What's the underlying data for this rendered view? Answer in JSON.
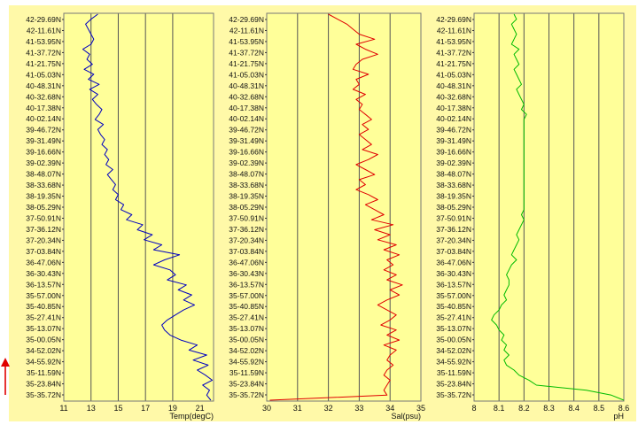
{
  "latitude_labels": [
    "42-29.69N",
    "42-11.61N",
    "41-53.95N",
    "41-37.72N",
    "41-21.75N",
    "41-05.03N",
    "40-48.31N",
    "40-32.68N",
    "40-17.38N",
    "40-02.14N",
    "39-46.72N",
    "39-31.49N",
    "39-16.66N",
    "39-02.39N",
    "38-48.07N",
    "38-33.68N",
    "38-19.35N",
    "38-05.29N",
    "37-50.91N",
    "37-36.12N",
    "37-20.34N",
    "37-03.84N",
    "36-47.06N",
    "36-30.43N",
    "36-13.57N",
    "35-57.00N",
    "35-40.85N",
    "35-27.41N",
    "35-13.07N",
    "35-00.05N",
    "34-52.02N",
    "34-55.92N",
    "35-11.59N",
    "35-23.84N",
    "35-35.72N"
  ],
  "colors": {
    "panel_bg": "#ffff99",
    "frame_bg": "#fff9a8",
    "temp": "#0000c0",
    "sal": "#e00000",
    "ph": "#00bb00",
    "arrow": "#e00000",
    "grid": "#555555"
  },
  "arrow_icon": "up-arrow-icon",
  "chart_data": [
    {
      "type": "line",
      "xlabel": "Temp(degC)",
      "xlim": [
        11,
        22
      ],
      "xticks": [
        11,
        13,
        15,
        17,
        19,
        21
      ],
      "y": "latitude_labels",
      "series": [
        {
          "values": [
            13.5,
            13.0,
            12.6,
            12.8,
            13.0,
            13.2,
            13.0,
            12.4,
            12.9,
            12.7,
            13.1,
            12.5,
            13.2,
            12.8,
            13.6,
            12.9,
            13.5,
            13.1,
            13.4,
            13.8,
            13.6,
            13.3,
            13.9,
            13.5,
            13.7,
            14.0,
            13.8,
            14.2,
            14.0,
            14.3,
            14.1,
            14.6,
            14.2,
            14.5,
            14.8,
            14.6,
            15.0,
            14.8,
            15.4,
            15.2,
            16.0,
            15.6,
            16.8,
            16.4,
            17.5,
            16.9,
            18.2,
            17.6,
            19.5,
            18.4,
            17.6,
            18.8,
            19.2,
            18.6,
            20.0,
            19.4,
            20.4,
            19.8,
            20.6,
            19.8,
            19.2,
            18.6,
            18.2,
            18.4,
            18.8,
            19.6,
            20.8,
            20.2,
            21.5,
            20.5,
            21.6,
            20.8,
            21.4,
            21.9,
            21.2,
            21.7,
            21.5,
            21.8
          ]
        }
      ]
    },
    {
      "type": "line",
      "xlabel": "Sal(psu)",
      "xlim": [
        30,
        35
      ],
      "xticks": [
        30,
        31,
        32,
        33,
        34,
        35
      ],
      "y": "latitude_labels",
      "series": [
        {
          "values": [
            32.0,
            32.3,
            32.6,
            32.8,
            33.0,
            33.5,
            32.9,
            33.2,
            33.6,
            33.1,
            32.9,
            32.8,
            33.3,
            32.9,
            33.0,
            32.8,
            33.2,
            32.9,
            33.1,
            33.0,
            33.2,
            33.4,
            33.1,
            33.3,
            33.0,
            33.2,
            33.4,
            33.1,
            33.6,
            33.3,
            32.9,
            33.2,
            33.5,
            33.0,
            33.2,
            32.9,
            33.3,
            33.6,
            33.2,
            33.5,
            33.8,
            33.4,
            34.1,
            33.5,
            34.0,
            33.6,
            34.2,
            33.8,
            34.3,
            33.9,
            34.1,
            33.8,
            34.2,
            33.9,
            34.4,
            34.0,
            34.3,
            33.9,
            33.6,
            33.9,
            34.2,
            34.0,
            33.7,
            34.2,
            33.9,
            34.3,
            33.8,
            34.2,
            34.0,
            33.9,
            34.1,
            33.9,
            33.8,
            34.0,
            33.9,
            33.8,
            33.9,
            30.1
          ]
        }
      ]
    },
    {
      "type": "line",
      "xlabel": "pH",
      "xlim": [
        8.0,
        8.6
      ],
      "xticks": [
        8,
        8.1,
        8.2,
        8.3,
        8.4,
        8.5,
        8.6
      ],
      "y": "latitude_labels",
      "series": [
        {
          "values": [
            8.16,
            8.17,
            8.15,
            8.16,
            8.17,
            8.16,
            8.15,
            8.18,
            8.16,
            8.17,
            8.18,
            8.16,
            8.17,
            8.18,
            8.19,
            8.17,
            8.18,
            8.19,
            8.2,
            8.19,
            8.21,
            8.2,
            8.2,
            8.2,
            8.2,
            8.2,
            8.2,
            8.2,
            8.2,
            8.2,
            8.2,
            8.2,
            8.2,
            8.2,
            8.2,
            8.2,
            8.2,
            8.2,
            8.2,
            8.2,
            8.19,
            8.2,
            8.19,
            8.18,
            8.17,
            8.18,
            8.17,
            8.16,
            8.15,
            8.17,
            8.15,
            8.14,
            8.13,
            8.14,
            8.14,
            8.13,
            8.12,
            8.13,
            8.11,
            8.1,
            8.08,
            8.07,
            8.09,
            8.1,
            8.12,
            8.11,
            8.13,
            8.12,
            8.14,
            8.12,
            8.13,
            8.16,
            8.18,
            8.22,
            8.25,
            8.45,
            8.55,
            8.6
          ]
        }
      ]
    }
  ]
}
